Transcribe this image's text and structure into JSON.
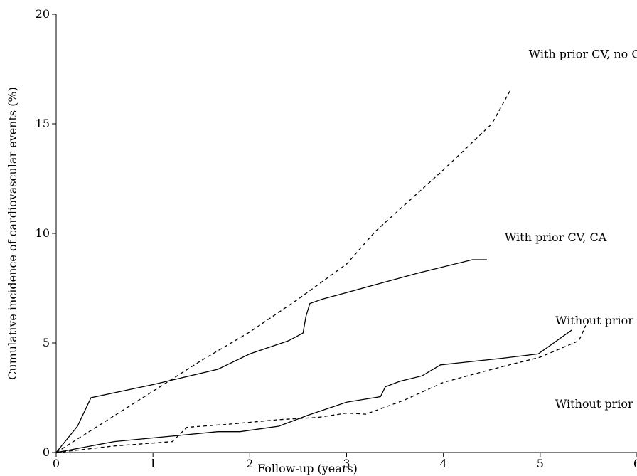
{
  "chart_data": {
    "type": "line",
    "title": "",
    "xlabel": "Follow-up (years)",
    "ylabel": "Cumulative incidence of cardiovascular events (%)",
    "xlim": [
      0,
      6
    ],
    "ylim": [
      0,
      20
    ],
    "x_ticks": [
      "0",
      "1",
      "2",
      "3",
      "4",
      "5",
      "6"
    ],
    "y_ticks": [
      "0",
      "5",
      "10",
      "15",
      "20"
    ],
    "grid": false,
    "legend": "none",
    "series": [
      {
        "name": "With prior CV, no CA",
        "style": "dashed",
        "color": "#000000",
        "points": [
          [
            0,
            0
          ],
          [
            0.5,
            1.4
          ],
          [
            1.0,
            2.8
          ],
          [
            1.5,
            4.2
          ],
          [
            2.0,
            5.5
          ],
          [
            2.5,
            7.0
          ],
          [
            3.0,
            8.6
          ],
          [
            3.3,
            10.1
          ],
          [
            3.5,
            10.9
          ],
          [
            4.0,
            12.9
          ],
          [
            4.5,
            15.0
          ],
          [
            4.7,
            16.6
          ]
        ]
      },
      {
        "name": "With prior CV, CA",
        "style": "solid",
        "color": "#000000",
        "points": [
          [
            0,
            0
          ],
          [
            0.22,
            1.2
          ],
          [
            0.36,
            2.5
          ],
          [
            1.0,
            3.1
          ],
          [
            1.67,
            3.8
          ],
          [
            2.0,
            4.5
          ],
          [
            2.4,
            5.1
          ],
          [
            2.55,
            5.45
          ],
          [
            2.58,
            6.2
          ],
          [
            2.62,
            6.8
          ],
          [
            2.75,
            7.0
          ],
          [
            3.0,
            7.3
          ],
          [
            3.25,
            7.6
          ],
          [
            3.75,
            8.2
          ],
          [
            4.3,
            8.8
          ],
          [
            4.45,
            8.8
          ]
        ]
      },
      {
        "name": "Without prior CV, CA",
        "style": "solid",
        "color": "#000000",
        "points": [
          [
            0,
            0
          ],
          [
            0.6,
            0.5
          ],
          [
            1.2,
            0.75
          ],
          [
            1.67,
            0.95
          ],
          [
            1.9,
            0.95
          ],
          [
            2.3,
            1.2
          ],
          [
            2.6,
            1.7
          ],
          [
            3.0,
            2.3
          ],
          [
            3.35,
            2.55
          ],
          [
            3.4,
            3.0
          ],
          [
            3.55,
            3.25
          ],
          [
            3.78,
            3.5
          ],
          [
            3.97,
            4.0
          ],
          [
            4.6,
            4.3
          ],
          [
            4.98,
            4.5
          ],
          [
            5.33,
            5.6
          ]
        ]
      },
      {
        "name": "Without prior CV, no CA",
        "style": "dashed",
        "color": "#000000",
        "points": [
          [
            0,
            0
          ],
          [
            0.6,
            0.3
          ],
          [
            1.2,
            0.5
          ],
          [
            1.35,
            1.15
          ],
          [
            1.8,
            1.3
          ],
          [
            2.3,
            1.5
          ],
          [
            2.7,
            1.6
          ],
          [
            3.0,
            1.8
          ],
          [
            3.2,
            1.75
          ],
          [
            3.6,
            2.4
          ],
          [
            4.0,
            3.2
          ],
          [
            4.5,
            3.8
          ],
          [
            5.0,
            4.35
          ],
          [
            5.4,
            5.1
          ],
          [
            5.47,
            5.8
          ]
        ]
      }
    ],
    "annotations": [
      {
        "text": "With prior CV, no CA",
        "x": 5.5,
        "y": 18.0
      },
      {
        "text": "With prior CV, CA",
        "x": 5.16,
        "y": 9.65
      },
      {
        "text": "Without prior CV, CA",
        "x": 5.78,
        "y": 5.85
      },
      {
        "text": "Without prior CV, no CA",
        "x": 5.87,
        "y": 2.05
      }
    ]
  }
}
